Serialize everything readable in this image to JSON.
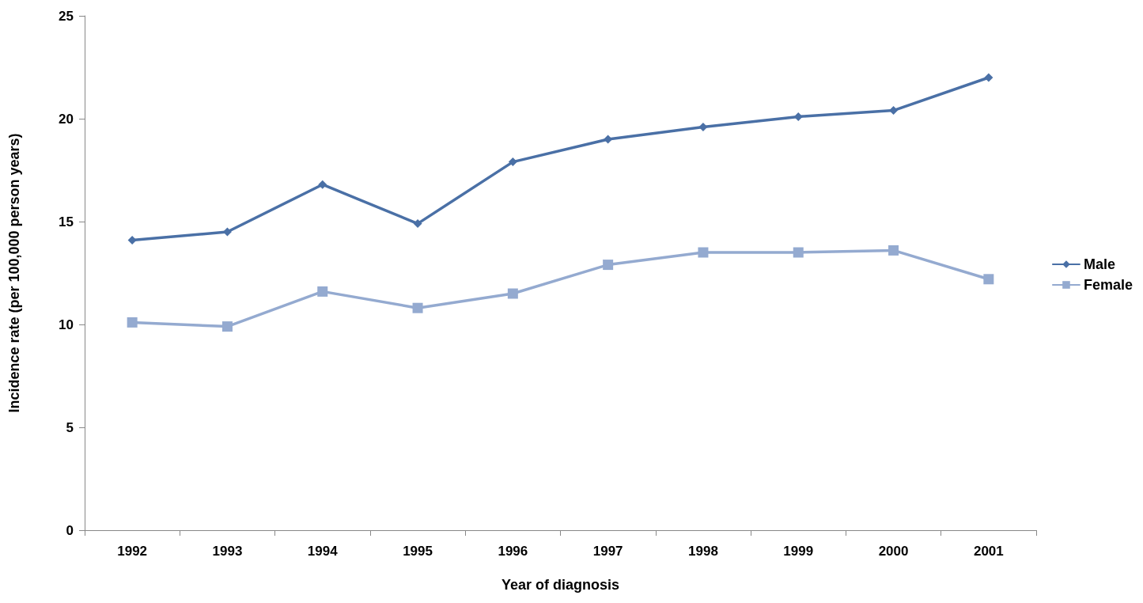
{
  "chart_data": {
    "type": "line",
    "xlabel": "Year of diagnosis",
    "ylabel": "Incidence rate (per 100,000 person years)",
    "categories": [
      "1992",
      "1993",
      "1994",
      "1995",
      "1996",
      "1997",
      "1998",
      "1999",
      "2000",
      "2001"
    ],
    "series": [
      {
        "name": "Male",
        "color": "#4a70a6",
        "marker": "diamond",
        "values": [
          14.1,
          14.5,
          16.8,
          14.9,
          17.9,
          19.0,
          19.6,
          20.1,
          20.4,
          22.0
        ]
      },
      {
        "name": "Female",
        "color": "#94aad0",
        "marker": "square",
        "values": [
          10.1,
          9.9,
          11.6,
          10.8,
          11.5,
          12.9,
          13.5,
          13.5,
          13.6,
          12.2
        ]
      }
    ],
    "ylim": [
      0,
      25
    ],
    "yticks": [
      0,
      5,
      10,
      15,
      20,
      25
    ],
    "grid": false,
    "legend": "right",
    "line_style": "solid"
  }
}
